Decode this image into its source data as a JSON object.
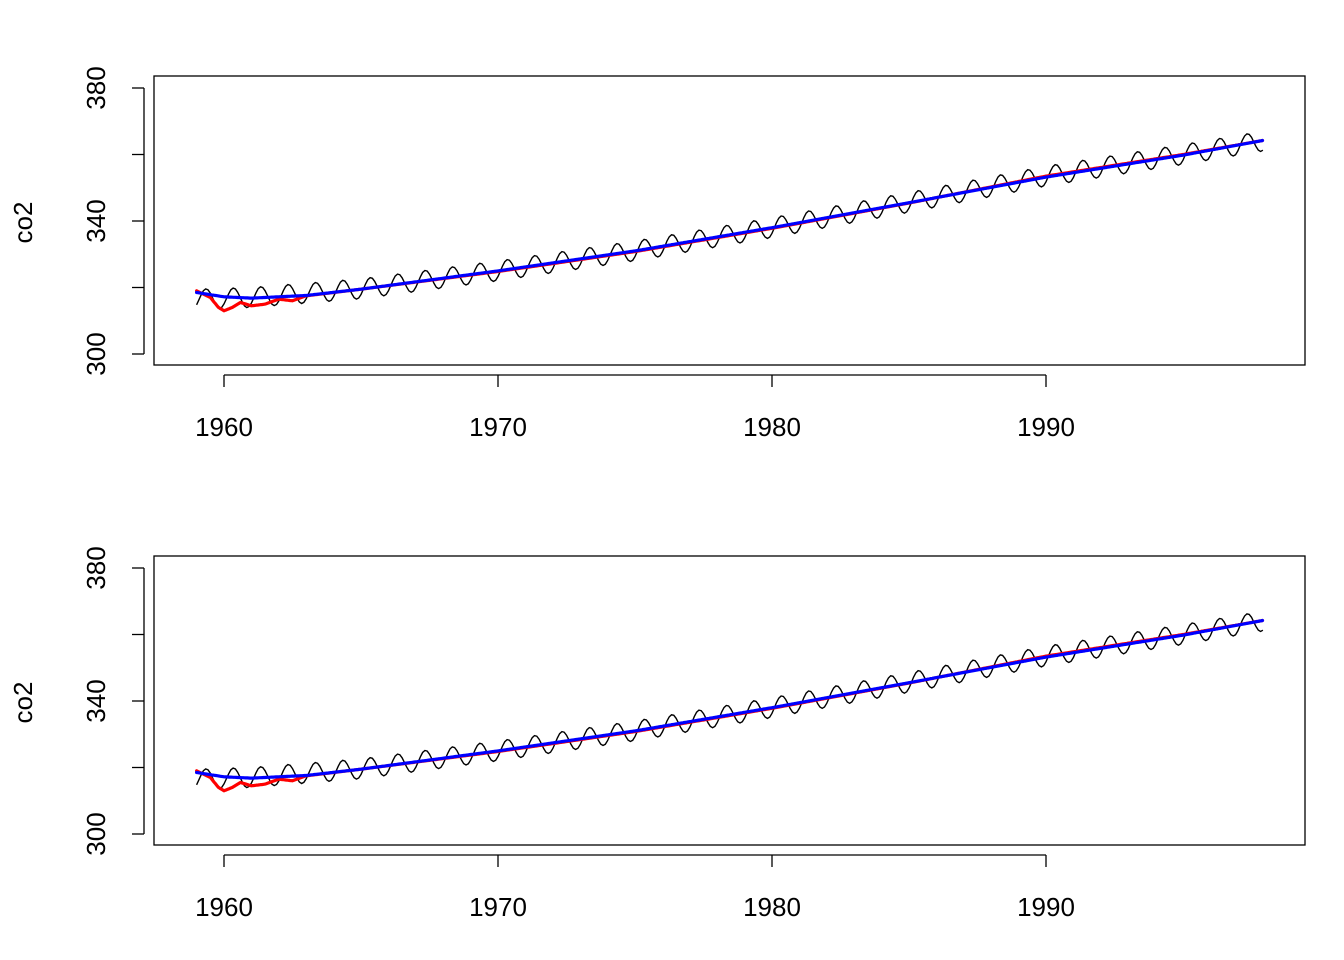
{
  "colors": {
    "observed": "#000000",
    "smooth_a": "#ff0000",
    "smooth_b": "#0000ff",
    "frame": "#000000"
  },
  "chart_data": [
    {
      "type": "line",
      "title": "",
      "xlabel": "",
      "ylabel": "co2",
      "xlim": [
        1959,
        1998
      ],
      "ylim": [
        300,
        380
      ],
      "x_ticks": [
        1960,
        1970,
        1980,
        1990
      ],
      "y_ticks": [
        300,
        340,
        380
      ],
      "grid": false,
      "series": [
        {
          "color": "#000000",
          "start": 1959.0,
          "end": 1997.917,
          "step": 0.08333,
          "seasonal_amplitude": 3.0,
          "trend_x": [
            1959,
            1961,
            1965,
            1970,
            1975,
            1980,
            1985,
            1990,
            1995,
            1997.9
          ],
          "trend_y": [
            316.5,
            317.0,
            319.6,
            325.0,
            331.0,
            338.0,
            345.6,
            353.5,
            360.0,
            364.0
          ]
        },
        {
          "color": "#ff0000",
          "x": [
            1959.0,
            1959.5,
            1959.8,
            1960.0,
            1960.3,
            1960.6,
            1961.0,
            1961.5,
            1962.0,
            1962.5,
            1963,
            1965,
            1970,
            1975,
            1980,
            1985,
            1990,
            1995,
            1997.9
          ],
          "y": [
            319.0,
            317.0,
            314.0,
            313.0,
            314.0,
            315.5,
            314.5,
            315.0,
            316.5,
            316.0,
            317.5,
            319.5,
            324.8,
            330.8,
            337.8,
            345.4,
            353.5,
            360.0,
            364.2
          ]
        },
        {
          "color": "#0000ff",
          "x": [
            1959,
            1960,
            1961,
            1963,
            1965,
            1970,
            1975,
            1980,
            1985,
            1990,
            1995,
            1997.9
          ],
          "y": [
            318.5,
            317.2,
            316.8,
            317.6,
            319.5,
            325.0,
            331.0,
            338.0,
            345.5,
            353.2,
            359.8,
            364.2
          ]
        }
      ]
    },
    {
      "type": "line",
      "title": "",
      "xlabel": "",
      "ylabel": "co2",
      "xlim": [
        1959,
        1998
      ],
      "ylim": [
        300,
        380
      ],
      "x_ticks": [
        1960,
        1970,
        1980,
        1990
      ],
      "y_ticks": [
        300,
        340,
        380
      ],
      "grid": false,
      "series": [
        {
          "color": "#000000",
          "start": 1959.0,
          "end": 1997.917,
          "step": 0.08333,
          "seasonal_amplitude": 3.0,
          "trend_x": [
            1959,
            1961,
            1965,
            1970,
            1975,
            1980,
            1985,
            1990,
            1995,
            1997.9
          ],
          "trend_y": [
            316.5,
            317.0,
            319.6,
            325.0,
            331.0,
            338.0,
            345.6,
            353.5,
            360.0,
            364.0
          ]
        },
        {
          "color": "#ff0000",
          "x": [
            1959.0,
            1959.5,
            1959.8,
            1960.0,
            1960.3,
            1960.6,
            1961.0,
            1961.5,
            1962.0,
            1962.5,
            1963,
            1965,
            1970,
            1975,
            1980,
            1985,
            1990,
            1995,
            1997.9
          ],
          "y": [
            319.0,
            317.0,
            314.0,
            313.0,
            314.0,
            315.5,
            314.5,
            315.0,
            316.5,
            316.0,
            317.5,
            319.5,
            324.8,
            330.8,
            337.8,
            345.4,
            353.5,
            360.0,
            364.2
          ]
        },
        {
          "color": "#0000ff",
          "x": [
            1959,
            1960,
            1961,
            1963,
            1965,
            1970,
            1975,
            1980,
            1985,
            1990,
            1995,
            1997.9
          ],
          "y": [
            318.5,
            317.2,
            316.8,
            317.6,
            319.5,
            325.0,
            331.0,
            338.0,
            345.5,
            353.2,
            359.8,
            364.2
          ]
        }
      ]
    }
  ]
}
